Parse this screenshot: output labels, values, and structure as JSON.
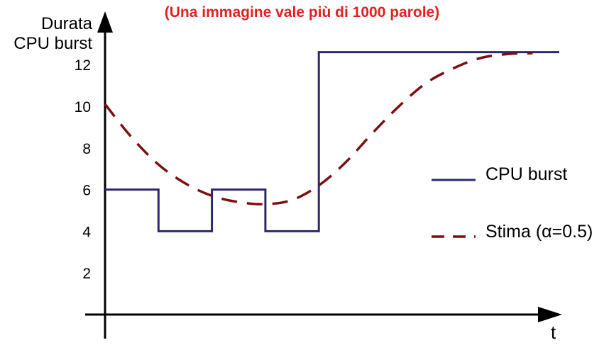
{
  "chart_data": {
    "type": "line",
    "subtitle": "(Una immagine vale più di 1000 parole)",
    "ylabel_line1": "Durata",
    "ylabel_line2": "CPU burst",
    "xlabel": "t",
    "yticks": [
      2,
      4,
      6,
      8,
      10,
      12
    ],
    "ylim": [
      0,
      13.3
    ],
    "xlim": [
      0,
      8.5
    ],
    "grid": false,
    "legend_position": "right",
    "series": [
      {
        "name": "CPU burst",
        "style": "step",
        "color": "#2a2a6a",
        "x": [
          0,
          1,
          1,
          2,
          2,
          3,
          3,
          4,
          4,
          8.5
        ],
        "y": [
          6,
          6,
          4,
          4,
          6,
          6,
          4,
          4,
          12.6,
          12.6
        ]
      },
      {
        "name": "Stima (α=0.5)",
        "style": "dashed",
        "color": "#7a1010",
        "x": [
          0,
          0.5,
          1,
          1.5,
          2,
          2.5,
          3,
          3.5,
          4,
          4.5,
          5,
          5.5,
          6,
          6.5,
          7,
          7.5,
          8
        ],
        "y": [
          10.1,
          8.5,
          7.2,
          6.3,
          5.7,
          5.4,
          5.3,
          5.5,
          6.2,
          7.3,
          8.7,
          10.0,
          11.1,
          11.8,
          12.3,
          12.5,
          12.55
        ]
      }
    ]
  }
}
